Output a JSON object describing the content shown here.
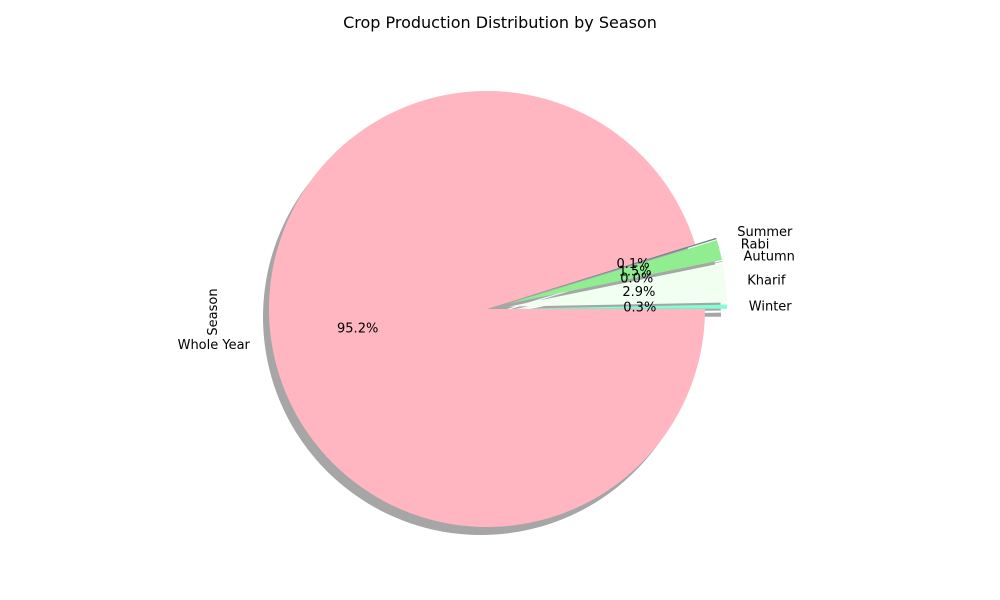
{
  "chart_data": {
    "type": "pie",
    "title": "Crop Production Distribution by Season",
    "ylabel": "Season",
    "slices": [
      {
        "label": "Whole Year",
        "value": 95.2,
        "pct_label": "95.2%",
        "color": "#FFB6C1",
        "explode": false
      },
      {
        "label": "Summer",
        "value": 0.1,
        "pct_label": "0.1%",
        "color": "#708090",
        "explode": true
      },
      {
        "label": "Rabi",
        "value": 1.5,
        "pct_label": "1.5%",
        "color": "#90EE90",
        "explode": true
      },
      {
        "label": "Autumn",
        "value": 0.0,
        "pct_label": "0.0%",
        "color": "#A9A9A9",
        "explode": true
      },
      {
        "label": "Kharif",
        "value": 2.9,
        "pct_label": "2.9%",
        "color": "#F0FFF0",
        "explode": true
      },
      {
        "label": "Winter",
        "value": 0.3,
        "pct_label": "0.3%",
        "color": "#7FFFD4",
        "explode": true
      }
    ],
    "start_angle_deg": 0,
    "direction": "clockwise",
    "shadow": true,
    "legend": "none"
  }
}
